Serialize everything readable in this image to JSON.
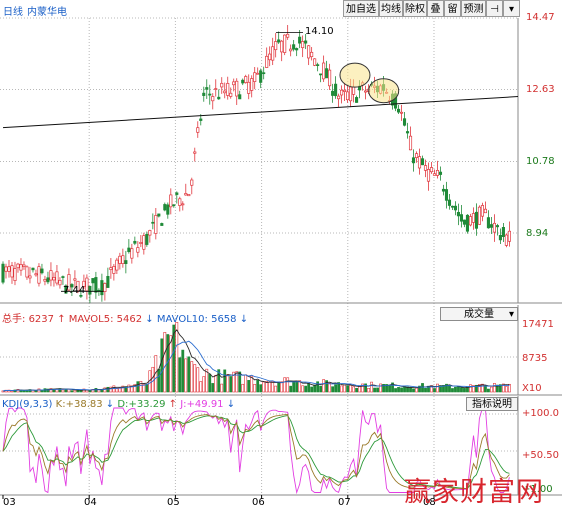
{
  "header": {
    "period": "日线",
    "stock_name": "内蒙华电",
    "buttons": [
      "加自选",
      "均线",
      "除权",
      "叠",
      "留",
      "预测",
      "⊣",
      "▾"
    ]
  },
  "chart_data": [
    {
      "type": "candlestick",
      "name": "price",
      "y_ticks": [
        "14.47",
        "12.63",
        "10.78",
        "8.94"
      ],
      "y_tick_values": [
        14.47,
        12.63,
        10.78,
        8.94
      ],
      "annotations": [
        {
          "text": "14.10",
          "x": "2006-03",
          "y": 14.1
        },
        {
          "text": "7.44",
          "x": "2004-03",
          "y": 7.44
        }
      ],
      "trendline": {
        "from": {
          "x": "2003-01",
          "y": 11.65
        },
        "to": {
          "x": "2008-12",
          "y": 12.45
        }
      },
      "circles": [
        {
          "x": "2007-02",
          "y": 13.0
        },
        {
          "x": "2007-06",
          "y": 12.6
        }
      ],
      "path": [
        {
          "x": "2003-01",
          "y": 7.95
        },
        {
          "x": "2003-06",
          "y": 7.85
        },
        {
          "x": "2003-11",
          "y": 7.55
        },
        {
          "x": "2004-03",
          "y": 7.6
        },
        {
          "x": "2004-06",
          "y": 8.3
        },
        {
          "x": "2004-09",
          "y": 8.8
        },
        {
          "x": "2004-12",
          "y": 9.6
        },
        {
          "x": "2005-03",
          "y": 10.0
        },
        {
          "x": "2005-05",
          "y": 12.5
        },
        {
          "x": "2005-09",
          "y": 12.6
        },
        {
          "x": "2005-12",
          "y": 12.8
        },
        {
          "x": "2006-03",
          "y": 13.7
        },
        {
          "x": "2006-06",
          "y": 13.9
        },
        {
          "x": "2006-09",
          "y": 13.3
        },
        {
          "x": "2006-12",
          "y": 12.4
        },
        {
          "x": "2007-03",
          "y": 12.6
        },
        {
          "x": "2007-06",
          "y": 12.7
        },
        {
          "x": "2007-08",
          "y": 12.3
        },
        {
          "x": "2007-10",
          "y": 11.0
        },
        {
          "x": "2007-12",
          "y": 10.5
        },
        {
          "x": "2008-02",
          "y": 10.3
        },
        {
          "x": "2008-05",
          "y": 9.2
        },
        {
          "x": "2008-08",
          "y": 9.4
        },
        {
          "x": "2008-11",
          "y": 8.8
        }
      ]
    },
    {
      "type": "bar",
      "name": "volume",
      "header": {
        "label": "总手",
        "value": "6237",
        "ma5_label": "MAVOL5",
        "ma5_value": "5462",
        "ma10_label": "MAVOL10",
        "ma10_value": "5658"
      },
      "selector": "成交量",
      "y_ticks": [
        "17471",
        "8735",
        "X10"
      ],
      "y_tick_values": [
        17471,
        8735,
        0
      ],
      "path": [
        {
          "x": "2003-01",
          "y": 500
        },
        {
          "x": "2004-03",
          "y": 900
        },
        {
          "x": "2004-09",
          "y": 2400
        },
        {
          "x": "2005-01",
          "y": 17000
        },
        {
          "x": "2005-03",
          "y": 7000
        },
        {
          "x": "2005-06",
          "y": 4500
        },
        {
          "x": "2006-03",
          "y": 3200
        },
        {
          "x": "2006-10",
          "y": 2300
        },
        {
          "x": "2007-06",
          "y": 1800
        },
        {
          "x": "2008-03",
          "y": 1500
        },
        {
          "x": "2008-12",
          "y": 1700
        }
      ]
    },
    {
      "type": "line",
      "name": "kdj",
      "header": {
        "label": "KDJ(9,3,3)",
        "k_label": "K:",
        "k_value": "+38.83",
        "d_label": "D:",
        "d_value": "+33.29",
        "j_label": "J:",
        "j_value": "+49.91"
      },
      "selector": "指标说明",
      "y_ticks": [
        "+100.0",
        "+50.50",
        "+1.00"
      ],
      "y_tick_values": [
        100,
        50.5,
        1
      ],
      "series": [
        {
          "name": "K",
          "color": "#9a7a2a"
        },
        {
          "name": "D",
          "color": "#2d9a3a"
        },
        {
          "name": "J",
          "color": "#e23ee2"
        }
      ]
    }
  ],
  "x_axis": {
    "labels": [
      "03",
      "04",
      "05",
      "06",
      "07",
      "08"
    ]
  },
  "watermark": "赢家财富网",
  "colors": {
    "up": "#e0343b",
    "down": "#1f8a38",
    "grid": "#b8b8b8",
    "axis_text_up": "#d23030",
    "axis_text_down": "#1c7a1c"
  }
}
